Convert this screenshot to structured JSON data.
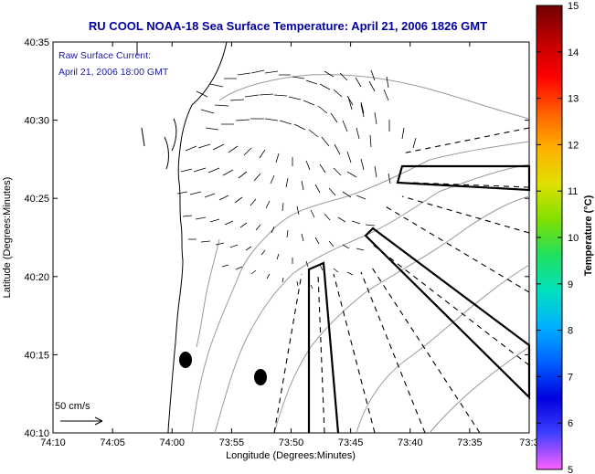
{
  "title": "RU COOL  NOAA-18  Sea Surface Temperature:  April 21, 2006 1826 GMT",
  "annotation": {
    "line1": "Raw Surface Current:",
    "line2": "April 21, 2006 18:00 GMT"
  },
  "scale_label": "50 cm/s",
  "x_axis": {
    "label": "Longitude (Degrees:Minutes)",
    "ticks": [
      "74:10",
      "74:05",
      "74:00",
      "73:55",
      "73:50",
      "73:45",
      "73:40",
      "73:35",
      "73:3"
    ]
  },
  "y_axis": {
    "label": "Latitude (Degrees:Minutes)",
    "ticks": [
      "40:35",
      "40:30",
      "40:25",
      "40:20",
      "40:15",
      "40:10"
    ]
  },
  "colorbar": {
    "label": "Temperature (°C)",
    "min": 5,
    "max": 15,
    "ticks": [
      "15",
      "14",
      "13",
      "12",
      "11",
      "10",
      "9",
      "8",
      "7",
      "6",
      "5"
    ],
    "colors": [
      "#ff60ff",
      "#4040ff",
      "#0000e0",
      "#0060ff",
      "#00b0ff",
      "#00e0c0",
      "#20e060",
      "#80e000",
      "#e0e000",
      "#ffb000",
      "#ff6000",
      "#ff0000",
      "#c00000",
      "#700000"
    ]
  }
}
